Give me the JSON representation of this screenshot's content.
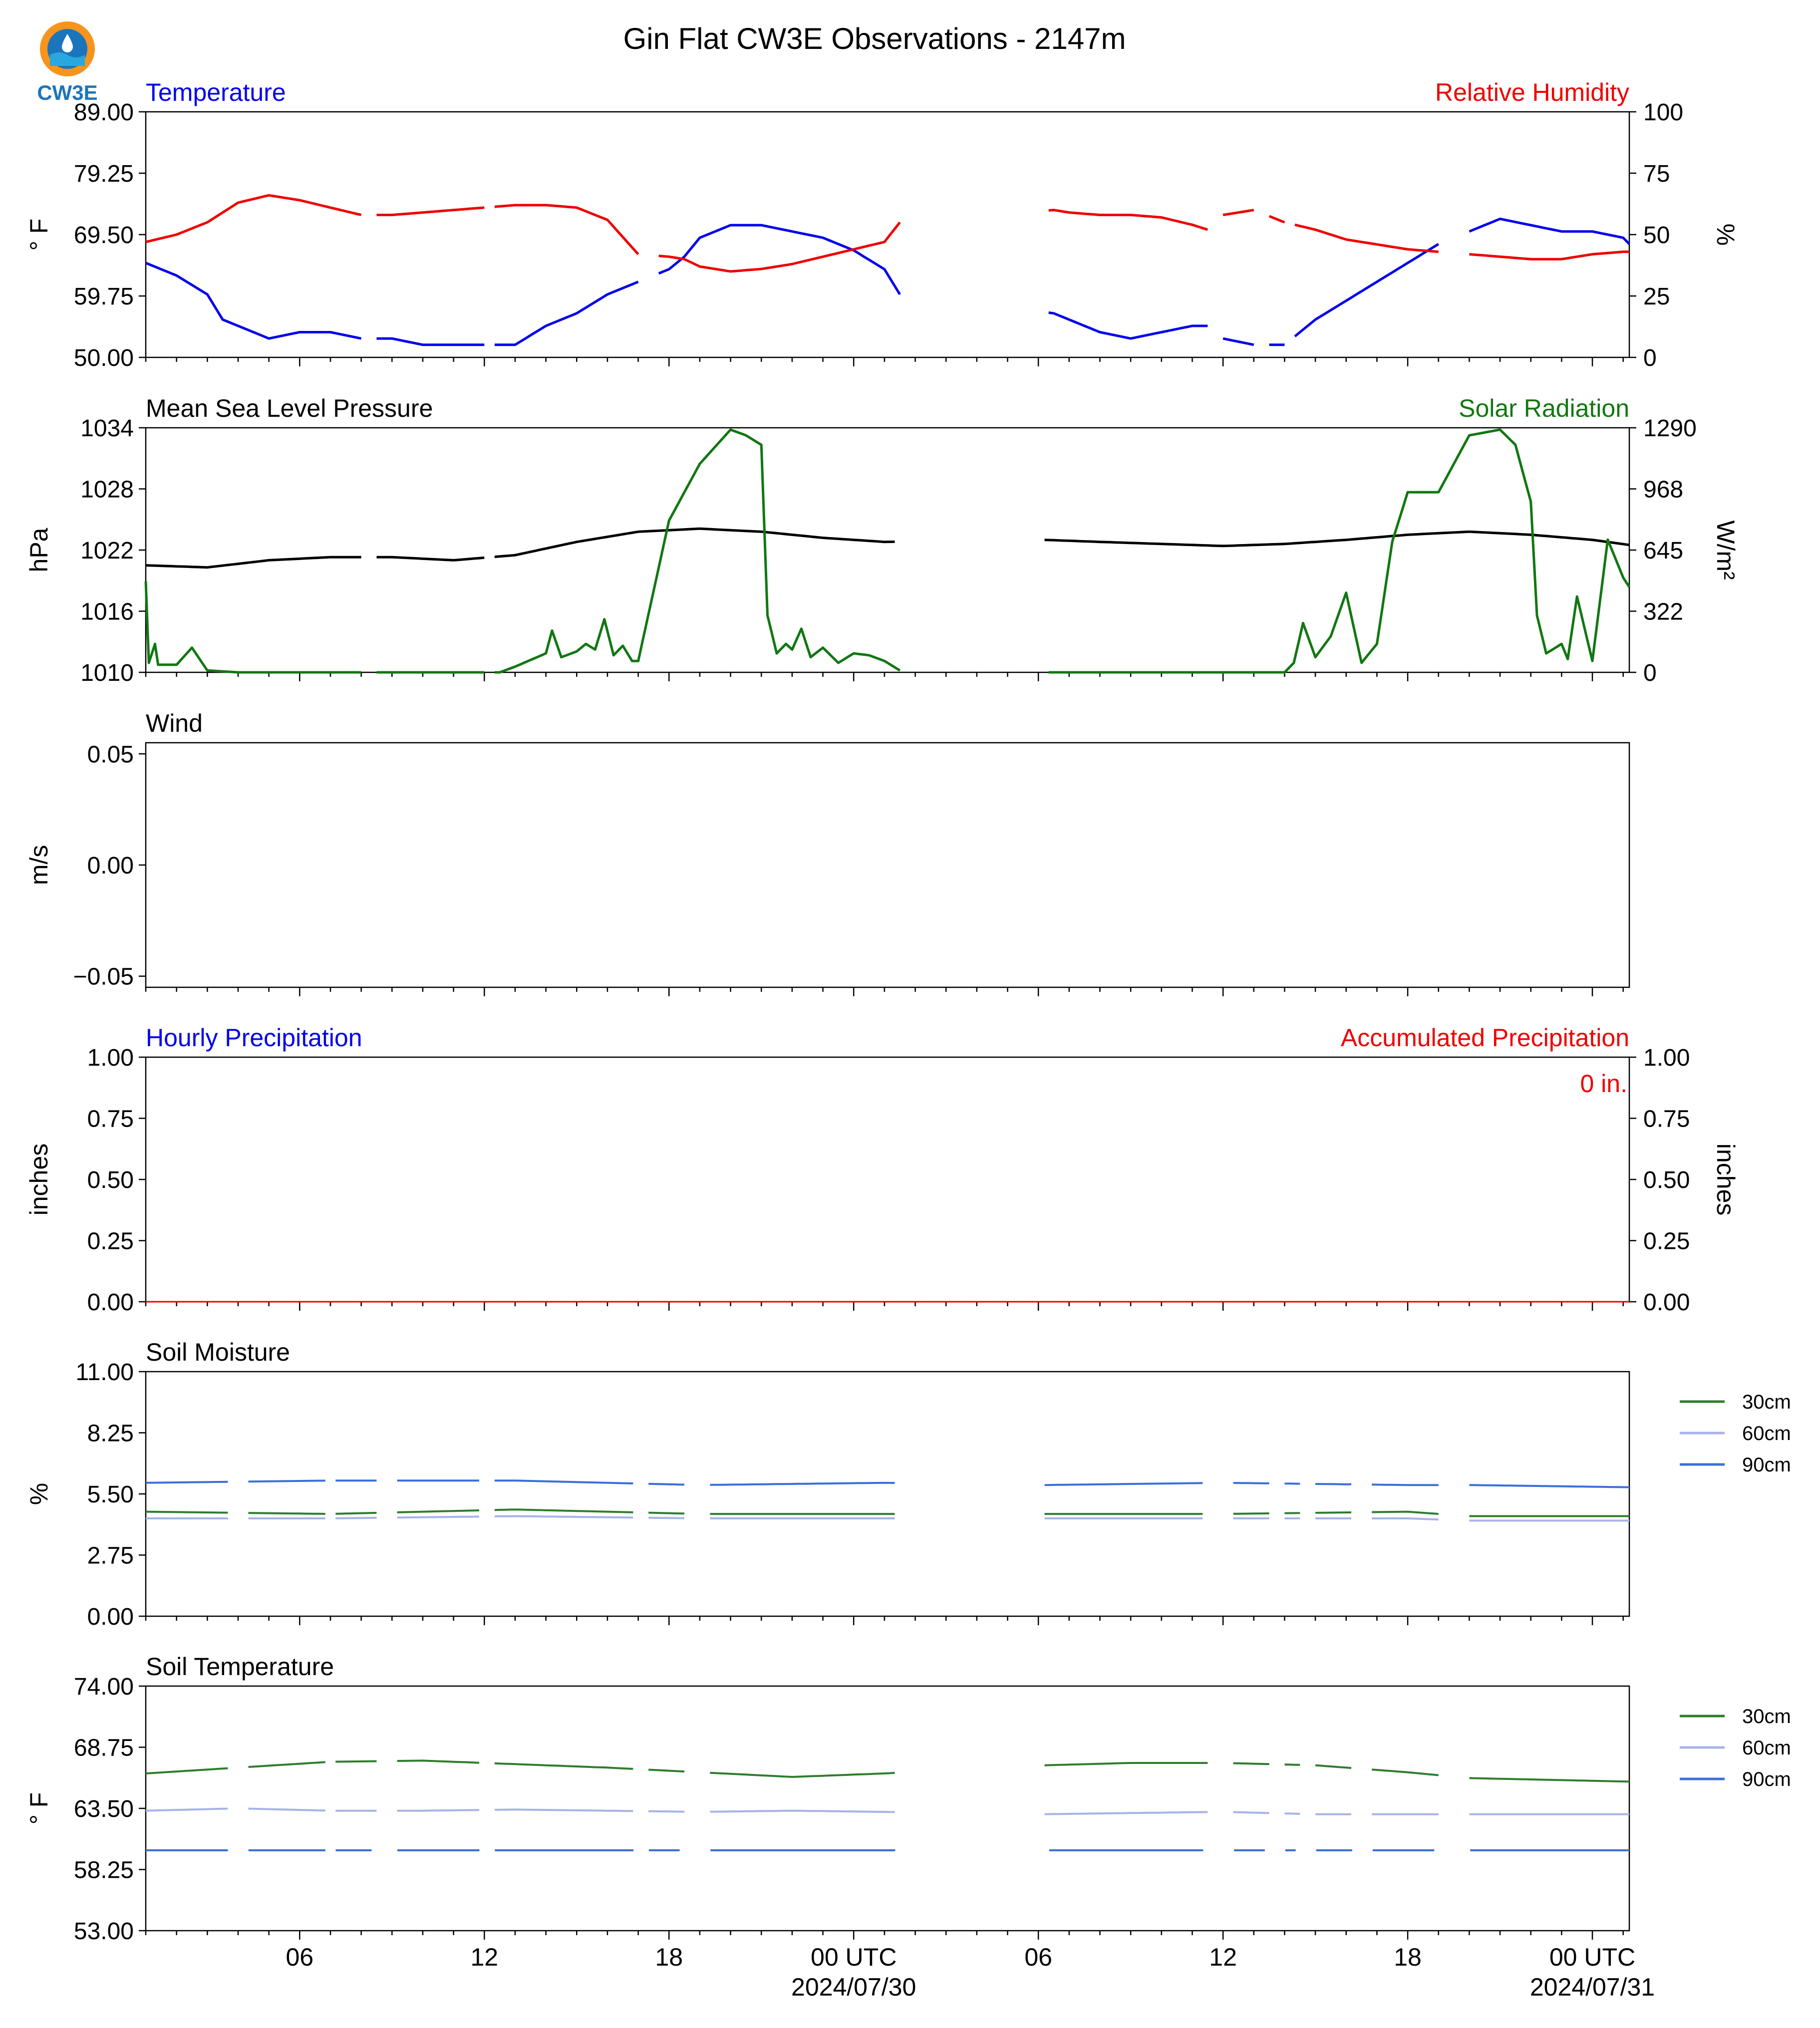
{
  "title": "Gin Flat CW3E Observations - 2147m",
  "logo": {
    "text": "CW3E",
    "colors": [
      "#f7941d",
      "#1b75bc",
      "#29a8e0"
    ]
  },
  "colors": {
    "blue": "#0000ee",
    "red": "#ee0000",
    "green": "#117711",
    "black": "#000000",
    "soil30": "#2e7d2e",
    "soil60": "#a7b3e6",
    "soil90": "#3a6fd8"
  },
  "x_axis": {
    "start_hour": 1,
    "end_hour": 49.2,
    "ticks": [
      {
        "hour": 6,
        "label": "06"
      },
      {
        "hour": 12,
        "label": "12"
      },
      {
        "hour": 18,
        "label": "18"
      },
      {
        "hour": 24,
        "label": "00 UTC",
        "date": "2024/07/30"
      },
      {
        "hour": 30,
        "label": "06"
      },
      {
        "hour": 36,
        "label": "12"
      },
      {
        "hour": 42,
        "label": "18"
      },
      {
        "hour": 48,
        "label": "00 UTC",
        "date": "2024/07/31"
      }
    ]
  },
  "panels": {
    "temp_rh": {
      "left_title": "Temperature",
      "right_title": "Relative Humidity",
      "ylabel_left": "° F",
      "ylabel_right": "%",
      "left_ticks": [
        "50.00",
        "59.75",
        "69.50",
        "79.25",
        "89.00"
      ],
      "right_ticks": [
        "0",
        "25",
        "50",
        "75",
        "100"
      ]
    },
    "pressure_solar": {
      "left_title": "Mean Sea Level Pressure",
      "right_title": "Solar Radiation",
      "ylabel_left": "hPa",
      "ylabel_right": "W/m²",
      "left_ticks": [
        "1010",
        "1016",
        "1022",
        "1028",
        "1034"
      ],
      "right_ticks": [
        "0",
        "322",
        "645",
        "968",
        "1290"
      ]
    },
    "wind": {
      "left_title": "Wind",
      "ylabel_left": "m/s",
      "left_ticks": [
        "−0.05",
        "0.00",
        "0.05"
      ]
    },
    "precip": {
      "left_title": "Hourly Precipitation",
      "right_title": "Accumulated Precipitation",
      "ylabel_left": "inches",
      "ylabel_right": "inches",
      "left_ticks": [
        "0.00",
        "0.25",
        "0.50",
        "0.75",
        "1.00"
      ],
      "right_ticks": [
        "0.00",
        "0.25",
        "0.50",
        "0.75",
        "1.00"
      ],
      "annotation": "0 in."
    },
    "soil_moisture": {
      "left_title": "Soil Moisture",
      "ylabel_left": "%",
      "left_ticks": [
        "0.00",
        "2.75",
        "5.50",
        "8.25",
        "11.00"
      ],
      "legend": [
        "30cm",
        "60cm",
        "90cm"
      ]
    },
    "soil_temp": {
      "left_title": "Soil Temperature",
      "ylabel_left": "° F",
      "left_ticks": [
        "53.00",
        "58.25",
        "63.50",
        "68.75",
        "74.00"
      ],
      "legend": [
        "30cm",
        "60cm",
        "90cm"
      ]
    }
  },
  "chart_data": [
    {
      "type": "line",
      "title": "Temperature / Relative Humidity",
      "xlabel": "",
      "ylabel": "° F",
      "ylim": [
        50,
        89
      ],
      "y2lim": [
        0,
        100
      ],
      "gaps_hours": [
        [
          8.0,
          8.4
        ],
        [
          12.0,
          12.3
        ],
        [
          17.0,
          17.6
        ],
        [
          25.5,
          30.2
        ],
        [
          35.5,
          36.0
        ],
        [
          37.0,
          37.5
        ],
        [
          38.0,
          38.2
        ],
        [
          43.0,
          44.0
        ]
      ],
      "series": [
        {
          "name": "Temperature",
          "axis": "left",
          "x": [
            1,
            2,
            3,
            3.5,
            4,
            5,
            6,
            7,
            8,
            9,
            10,
            11,
            12,
            13,
            14,
            15,
            16,
            17,
            18,
            18.5,
            19,
            20,
            21,
            22,
            23,
            24,
            25,
            25.5,
            30.5,
            31,
            32,
            33,
            34,
            35,
            35.5,
            36,
            37,
            38,
            39,
            40,
            41,
            42,
            43,
            44,
            45,
            46,
            47,
            48,
            49,
            49.2
          ],
          "values": [
            65,
            63,
            60,
            56,
            55,
            53,
            54,
            54,
            53,
            53,
            52,
            52,
            52,
            52,
            55,
            57,
            60,
            62,
            64,
            66,
            69,
            71,
            71,
            70,
            69,
            67,
            64,
            60,
            57,
            56,
            54,
            53,
            54,
            55,
            55,
            53,
            52,
            52,
            56,
            59,
            62,
            65,
            68,
            70,
            72,
            71,
            70,
            70,
            69,
            68
          ]
        },
        {
          "name": "Relative Humidity",
          "axis": "right",
          "x": [
            1,
            2,
            3,
            4,
            5,
            6,
            7,
            8,
            9,
            10,
            11,
            12,
            13,
            14,
            15,
            16,
            17,
            18,
            18.5,
            19,
            20,
            21,
            22,
            23,
            24,
            25,
            25.5,
            30.5,
            31,
            32,
            33,
            34,
            35,
            35.5,
            36,
            37,
            38,
            39,
            40,
            41,
            42,
            43,
            44,
            45,
            46,
            47,
            48,
            49,
            49.2
          ],
          "values": [
            47,
            50,
            55,
            63,
            66,
            64,
            61,
            58,
            58,
            59,
            60,
            61,
            62,
            62,
            61,
            56,
            42,
            41,
            40,
            37,
            35,
            36,
            38,
            41,
            44,
            47,
            55,
            60,
            59,
            58,
            58,
            57,
            54,
            52,
            58,
            60,
            55,
            52,
            48,
            46,
            44,
            43,
            42,
            41,
            40,
            40,
            42,
            43,
            43
          ]
        }
      ]
    },
    {
      "type": "line",
      "title": "Mean Sea Level Pressure / Solar Radiation",
      "xlabel": "",
      "ylabel": "hPa",
      "ylim": [
        1010,
        1034
      ],
      "y2lim": [
        0,
        1290
      ],
      "series": [
        {
          "name": "Mean Sea Level Pressure",
          "axis": "left",
          "x": [
            1,
            3,
            5,
            7,
            9,
            11,
            13,
            15,
            17,
            19,
            21,
            23,
            25,
            30.2,
            32,
            34,
            36,
            38,
            40,
            42,
            44,
            46,
            48,
            49.2
          ],
          "values": [
            1020.5,
            1020.3,
            1021,
            1021.3,
            1021.3,
            1021,
            1021.5,
            1022.8,
            1023.8,
            1024.1,
            1023.8,
            1023.2,
            1022.8,
            1023.0,
            1022.8,
            1022.6,
            1022.4,
            1022.6,
            1023,
            1023.5,
            1023.8,
            1023.5,
            1023,
            1022.5
          ]
        },
        {
          "name": "Solar Radiation",
          "axis": "right",
          "x": [
            1,
            1.1,
            1.3,
            1.4,
            2,
            2.5,
            3,
            4,
            6,
            8,
            10,
            12,
            12.5,
            13,
            14,
            14.2,
            14.5,
            15,
            15.3,
            15.6,
            15.9,
            16.2,
            16.5,
            16.8,
            17,
            18,
            19,
            20,
            20.5,
            21,
            21.2,
            21.5,
            21.8,
            22,
            22.3,
            22.6,
            23,
            23.5,
            24,
            24.5,
            25,
            25.5,
            26,
            30.5,
            32,
            34,
            36,
            38,
            38.3,
            38.6,
            39,
            39.5,
            40,
            40.5,
            41,
            41.5,
            42,
            43,
            44,
            45,
            45.5,
            46,
            46.2,
            46.5,
            47,
            47.2,
            47.5,
            48,
            48.5,
            49,
            49.2
          ],
          "values": [
            480,
            50,
            150,
            40,
            40,
            130,
            10,
            0,
            0,
            0,
            0,
            0,
            0,
            30,
            100,
            220,
            80,
            110,
            150,
            120,
            280,
            90,
            140,
            60,
            60,
            800,
            1100,
            1280,
            1250,
            1200,
            300,
            100,
            150,
            120,
            230,
            80,
            130,
            50,
            100,
            90,
            60,
            10,
            0,
            0,
            0,
            0,
            0,
            0,
            50,
            260,
            80,
            190,
            420,
            50,
            150,
            690,
            950,
            950,
            1250,
            1280,
            1200,
            900,
            300,
            100,
            150,
            70,
            400,
            60,
            700,
            500,
            450
          ]
        }
      ]
    },
    {
      "type": "line",
      "title": "Wind",
      "xlabel": "",
      "ylabel": "m/s",
      "ylim": [
        -0.055,
        0.055
      ],
      "series": []
    },
    {
      "type": "line",
      "title": "Hourly Precipitation / Accumulated Precipitation",
      "xlabel": "",
      "ylabel": "inches",
      "ylim": [
        0,
        1
      ],
      "y2lim": [
        0,
        1
      ],
      "series": [
        {
          "name": "Hourly Precipitation",
          "axis": "left",
          "x": [
            1,
            49.2
          ],
          "values": [
            0,
            0
          ]
        },
        {
          "name": "Accumulated Precipitation",
          "axis": "right",
          "x": [
            1,
            49.2
          ],
          "values": [
            0,
            0
          ]
        }
      ]
    },
    {
      "type": "line",
      "title": "Soil Moisture",
      "xlabel": "",
      "ylabel": "%",
      "ylim": [
        0,
        11
      ],
      "series": [
        {
          "name": "30cm",
          "x": [
            1,
            7,
            13,
            19,
            25,
            30.2,
            36,
            42,
            44,
            49.2
          ],
          "values": [
            4.7,
            4.6,
            4.8,
            4.6,
            4.6,
            4.6,
            4.6,
            4.7,
            4.5,
            4.5
          ]
        },
        {
          "name": "60cm",
          "x": [
            1,
            7,
            13,
            19,
            25,
            30.2,
            36,
            42,
            44,
            49.2
          ],
          "values": [
            4.4,
            4.4,
            4.5,
            4.4,
            4.4,
            4.4,
            4.4,
            4.4,
            4.3,
            4.3
          ]
        },
        {
          "name": "90cm",
          "x": [
            1,
            7,
            13,
            19,
            25,
            30.2,
            36,
            42,
            44,
            49.2
          ],
          "values": [
            6.0,
            6.1,
            6.1,
            5.9,
            6.0,
            5.9,
            6.0,
            5.9,
            5.9,
            5.8
          ]
        }
      ]
    },
    {
      "type": "line",
      "title": "Soil Temperature",
      "xlabel": "",
      "ylabel": "° F",
      "ylim": [
        53,
        74
      ],
      "series": [
        {
          "name": "30cm",
          "x": [
            1,
            4,
            7,
            10,
            13,
            16,
            19,
            22,
            25,
            30.2,
            33,
            36,
            39,
            42,
            44,
            49.2
          ],
          "values": [
            66.5,
            67,
            67.5,
            67.6,
            67.3,
            67,
            66.6,
            66.2,
            66.5,
            67.2,
            67.4,
            67.4,
            67.2,
            66.6,
            66.1,
            65.8
          ]
        },
        {
          "name": "60cm",
          "x": [
            1,
            4,
            7,
            10,
            13,
            16,
            19,
            22,
            25,
            30.2,
            33,
            36,
            39,
            42,
            44,
            49.2
          ],
          "values": [
            63.3,
            63.5,
            63.3,
            63.3,
            63.4,
            63.3,
            63.2,
            63.3,
            63.2,
            63.0,
            63.1,
            63.2,
            63.0,
            63.0,
            63.0,
            63.0
          ]
        },
        {
          "name": "90cm",
          "x": [
            1,
            49.2
          ],
          "values": [
            59.9,
            59.9
          ]
        }
      ]
    }
  ]
}
